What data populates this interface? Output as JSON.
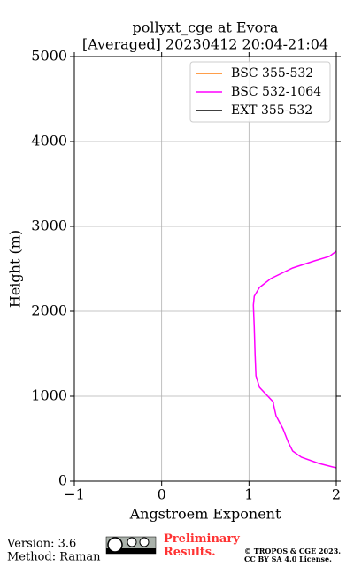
{
  "chart_data": {
    "type": "line",
    "title": "pollyxt_cge at Evora",
    "subtitle": "[Averaged] 20230412 20:04-21:04",
    "xlabel": "Angstroem Exponent",
    "ylabel": "Height (m)",
    "xlim": [
      -1,
      2
    ],
    "xticks": [
      {
        "value": -1,
        "label": "−1"
      },
      0,
      1,
      2
    ],
    "ylim": [
      0,
      5000
    ],
    "yticks": [
      0,
      1000,
      2000,
      3000,
      4000,
      5000
    ],
    "grid": true,
    "legend": "upper right",
    "series": [
      {
        "name": "BSC 355-532",
        "color": "#ff7f0e",
        "x": [],
        "y": []
      },
      {
        "name": "BSC 532-1064",
        "color": "#ff00ff",
        "x": [
          2.0,
          1.8,
          1.6,
          1.5,
          1.45,
          1.39,
          1.31,
          1.28,
          1.28,
          1.12,
          1.08,
          1.07,
          1.06,
          1.05,
          1.06,
          1.12,
          1.25,
          1.5,
          1.75,
          1.92,
          2.0
        ],
        "y": [
          156,
          208,
          281,
          354,
          458,
          615,
          771,
          906,
          930,
          1104,
          1240,
          1500,
          1813,
          2073,
          2177,
          2281,
          2385,
          2510,
          2594,
          2646,
          2708
        ]
      },
      {
        "name": "EXT 355-532",
        "color": "#000000",
        "x": [],
        "y": []
      }
    ]
  },
  "footer": {
    "version": "Version: 3.6",
    "method": "Method: Raman",
    "notice": "Preliminary Results.",
    "copyright": "© TROPOS & CGE 2023.",
    "license": "CC BY SA 4.0 License."
  }
}
